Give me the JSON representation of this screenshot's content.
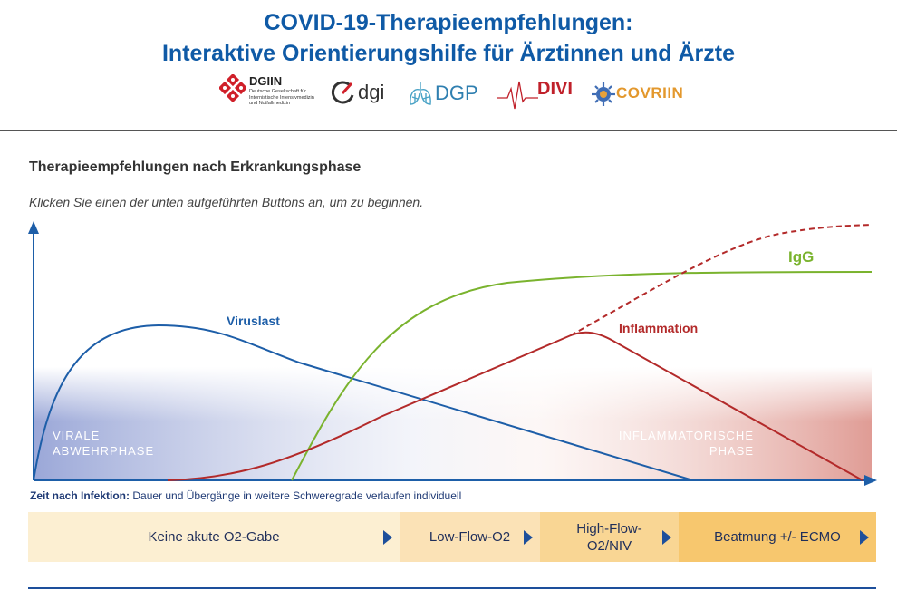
{
  "header": {
    "title_line1": "COVID-19-Therapieempfehlungen:",
    "title_line2": "Interaktive Orientierungshilfe für Ärztinnen und Ärzte"
  },
  "logos": {
    "dgiin": {
      "name": "DGIIN",
      "subtitle_lines": [
        "Deutsche Gesellschaft für",
        "Internistische Intensivmedizin",
        "und Notfallmedizin"
      ]
    },
    "dgi": "dgi",
    "dgp": "DGP",
    "divi": "DIVI",
    "covriin": "COVRIIN"
  },
  "section": {
    "heading": "Therapieempfehlungen nach Erkrankungsphase",
    "instruction": "Klicken Sie einen der unten aufgeführten Buttons an, um zu beginnen."
  },
  "chart_data": {
    "type": "line",
    "series": [
      {
        "name": "Viruslast",
        "color": "#1d5ea8"
      },
      {
        "name": "IgG",
        "color": "#7ab32e"
      },
      {
        "name": "Inflammation",
        "color": "#b32a2a"
      }
    ],
    "phase_labels": {
      "viral_line1": "VIRALE",
      "viral_line2": "ABWEHRPHASE",
      "inflam_line1": "INFLAMMATORISCHE",
      "inflam_line2": "PHASE"
    },
    "xcaption_bold": "Zeit nach Infektion:",
    "xcaption_rest": " Dauer und Übergänge in weitere Schweregrade verlaufen individuell"
  },
  "phases": [
    {
      "label": "Keine akute O2-Gabe",
      "color": "#fcefd2"
    },
    {
      "label": "Low-Flow-O2",
      "color": "#fbe2b6"
    },
    {
      "label_line1": "High-Flow-",
      "label_line2": "O2/NIV",
      "color": "#f9d694"
    },
    {
      "label": "Beatmung +/- ECMO",
      "color": "#f7c76e"
    }
  ]
}
